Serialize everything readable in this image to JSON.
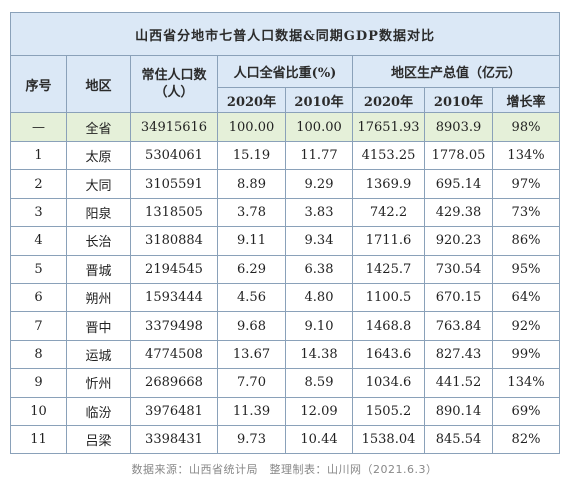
{
  "title": "山西省分地市七普人口数据&同期GDP数据对比",
  "headers": {
    "seq": "序号",
    "region": "地区",
    "population": "常住人口数（人）",
    "share_group": "人口全省比重(%)",
    "gdp_group": "地区生产总值（亿元）",
    "y2020": "2020年",
    "y2010": "2010年",
    "growth": "增长率"
  },
  "total": {
    "seq": "—",
    "region": "全省",
    "population": "34915616",
    "share2020": "100.00",
    "share2010": "100.00",
    "gdp2020": "17651.93",
    "gdp2010": "8903.9",
    "growth": "98%"
  },
  "rows": [
    {
      "seq": "1",
      "region": "太原",
      "population": "5304061",
      "share2020": "15.19",
      "share2010": "11.77",
      "gdp2020": "4153.25",
      "gdp2010": "1778.05",
      "growth": "134%"
    },
    {
      "seq": "2",
      "region": "大同",
      "population": "3105591",
      "share2020": "8.89",
      "share2010": "9.29",
      "gdp2020": "1369.9",
      "gdp2010": "695.14",
      "growth": "97%"
    },
    {
      "seq": "3",
      "region": "阳泉",
      "population": "1318505",
      "share2020": "3.78",
      "share2010": "3.83",
      "gdp2020": "742.2",
      "gdp2010": "429.38",
      "growth": "73%"
    },
    {
      "seq": "4",
      "region": "长治",
      "population": "3180884",
      "share2020": "9.11",
      "share2010": "9.34",
      "gdp2020": "1711.6",
      "gdp2010": "920.23",
      "growth": "86%"
    },
    {
      "seq": "5",
      "region": "晋城",
      "population": "2194545",
      "share2020": "6.29",
      "share2010": "6.38",
      "gdp2020": "1425.7",
      "gdp2010": "730.54",
      "growth": "95%"
    },
    {
      "seq": "6",
      "region": "朔州",
      "population": "1593444",
      "share2020": "4.56",
      "share2010": "4.80",
      "gdp2020": "1100.5",
      "gdp2010": "670.15",
      "growth": "64%"
    },
    {
      "seq": "7",
      "region": "晋中",
      "population": "3379498",
      "share2020": "9.68",
      "share2010": "9.10",
      "gdp2020": "1468.8",
      "gdp2010": "763.84",
      "growth": "92%"
    },
    {
      "seq": "8",
      "region": "运城",
      "population": "4774508",
      "share2020": "13.67",
      "share2010": "14.38",
      "gdp2020": "1643.6",
      "gdp2010": "827.43",
      "growth": "99%"
    },
    {
      "seq": "9",
      "region": "忻州",
      "population": "2689668",
      "share2020": "7.70",
      "share2010": "8.59",
      "gdp2020": "1034.6",
      "gdp2010": "441.52",
      "growth": "134%"
    },
    {
      "seq": "10",
      "region": "临汾",
      "population": "3976481",
      "share2020": "11.39",
      "share2010": "12.09",
      "gdp2020": "1505.2",
      "gdp2010": "890.14",
      "growth": "69%"
    },
    {
      "seq": "11",
      "region": "吕梁",
      "population": "3398431",
      "share2020": "9.73",
      "share2010": "10.44",
      "gdp2020": "1538.04",
      "gdp2010": "845.54",
      "growth": "82%"
    }
  ],
  "footer": "数据来源：山西省统计局　整理制表：山川网（2021.6.3）",
  "colors": {
    "header_bg": "#dbe8f6",
    "total_bg": "#e5f0d9",
    "border": "#8aa1b9"
  }
}
